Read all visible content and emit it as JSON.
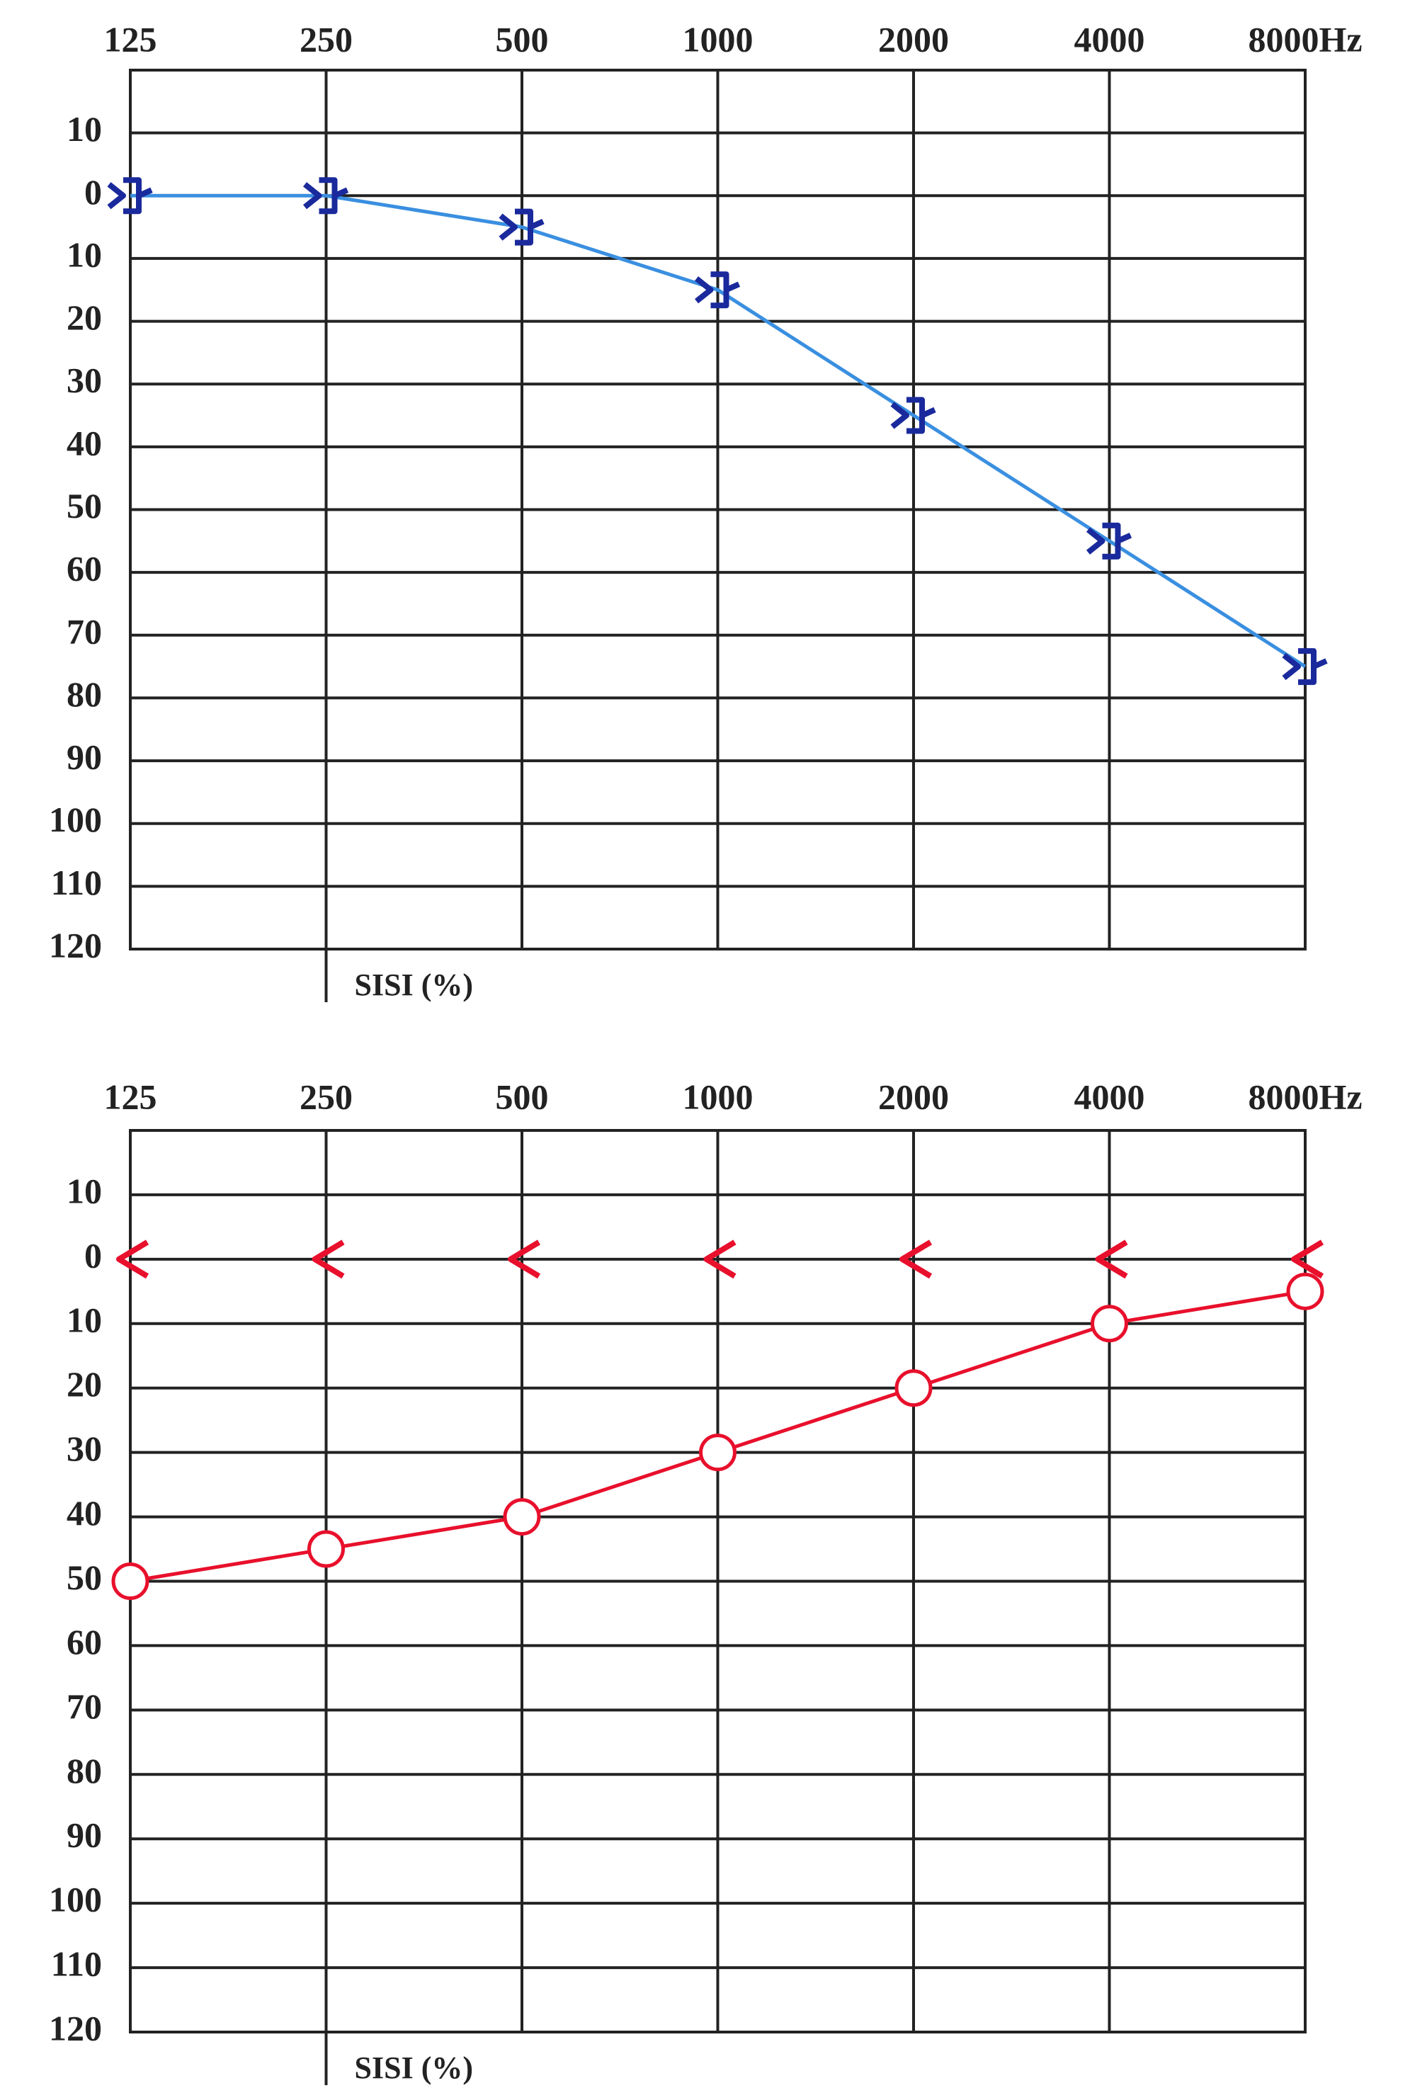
{
  "chart_data": [
    {
      "type": "line",
      "categories": [
        "125",
        "250",
        "500",
        "1000",
        "2000",
        "4000",
        "8000Hz"
      ],
      "series": [
        {
          "color": "#3a8fe0",
          "marker_color": "#1a2a9c",
          "marker": "bracket",
          "line": true,
          "values": [
            0,
            0,
            5,
            15,
            35,
            55,
            75
          ]
        }
      ],
      "ylim": [
        -20,
        120
      ],
      "y_inverted": true,
      "yticks": [
        {
          "value": -10,
          "label": "10"
        },
        0,
        10,
        20,
        30,
        40,
        50,
        60,
        70,
        80,
        90,
        100,
        110,
        120
      ],
      "grid": true,
      "annotation": "SISI (%)"
    },
    {
      "type": "line",
      "categories": [
        "125",
        "250",
        "500",
        "1000",
        "2000",
        "4000",
        "8000Hz"
      ],
      "series": [
        {
          "color": "#e8102c",
          "marker_color": "#e8102c",
          "marker": "chevron",
          "line": false,
          "values": [
            0,
            0,
            0,
            0,
            0,
            0,
            0
          ]
        },
        {
          "color": "#e8102c",
          "marker_color": "#e8102c",
          "marker": "circle",
          "line": true,
          "values": [
            50,
            45,
            40,
            30,
            20,
            10,
            5
          ]
        }
      ],
      "ylim": [
        -20,
        120
      ],
      "y_inverted": true,
      "yticks": [
        {
          "value": -10,
          "label": "10"
        },
        0,
        10,
        20,
        30,
        40,
        50,
        60,
        70,
        80,
        90,
        100,
        110,
        120
      ],
      "grid": true,
      "annotation": "SISI (%)"
    }
  ]
}
